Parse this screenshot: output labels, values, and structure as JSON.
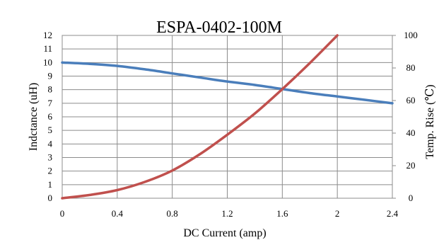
{
  "chart_data": {
    "type": "line",
    "title": "ESPA-0402-100M",
    "xlabel": "DC Current (amp)",
    "ylabel": "Indctance (uH)",
    "y2label": "Temp. Rise (℃)",
    "xlim": [
      0,
      2.4
    ],
    "ylim": [
      0,
      12
    ],
    "y2lim": [
      0,
      100
    ],
    "x_ticks": [
      "0",
      "0.4",
      "0.8",
      "1.2",
      "1.6",
      "2",
      "2.4"
    ],
    "y_ticks": [
      "0",
      "1",
      "2",
      "3",
      "4",
      "5",
      "6",
      "7",
      "8",
      "9",
      "10",
      "11",
      "12"
    ],
    "y2_ticks": [
      "0",
      "20",
      "40",
      "60",
      "80",
      "100"
    ],
    "grid": true,
    "legend": "none",
    "series": [
      {
        "axis": "left",
        "color": "#4a7ebb",
        "x": [
          0,
          0.2,
          0.4,
          0.6,
          0.8,
          1.0,
          1.2,
          1.4,
          1.6,
          1.8,
          2.0,
          2.2,
          2.4
        ],
        "y": [
          10.0,
          9.9,
          9.75,
          9.5,
          9.2,
          8.9,
          8.6,
          8.35,
          8.05,
          7.75,
          7.5,
          7.25,
          7.0
        ]
      },
      {
        "axis": "right",
        "color": "#c0504d",
        "x": [
          0,
          0.2,
          0.4,
          0.6,
          0.8,
          1.0,
          1.2,
          1.4,
          1.6,
          1.8,
          2.0
        ],
        "y": [
          0,
          2,
          5,
          10,
          17,
          27,
          39,
          52,
          67,
          83,
          100
        ]
      }
    ]
  }
}
